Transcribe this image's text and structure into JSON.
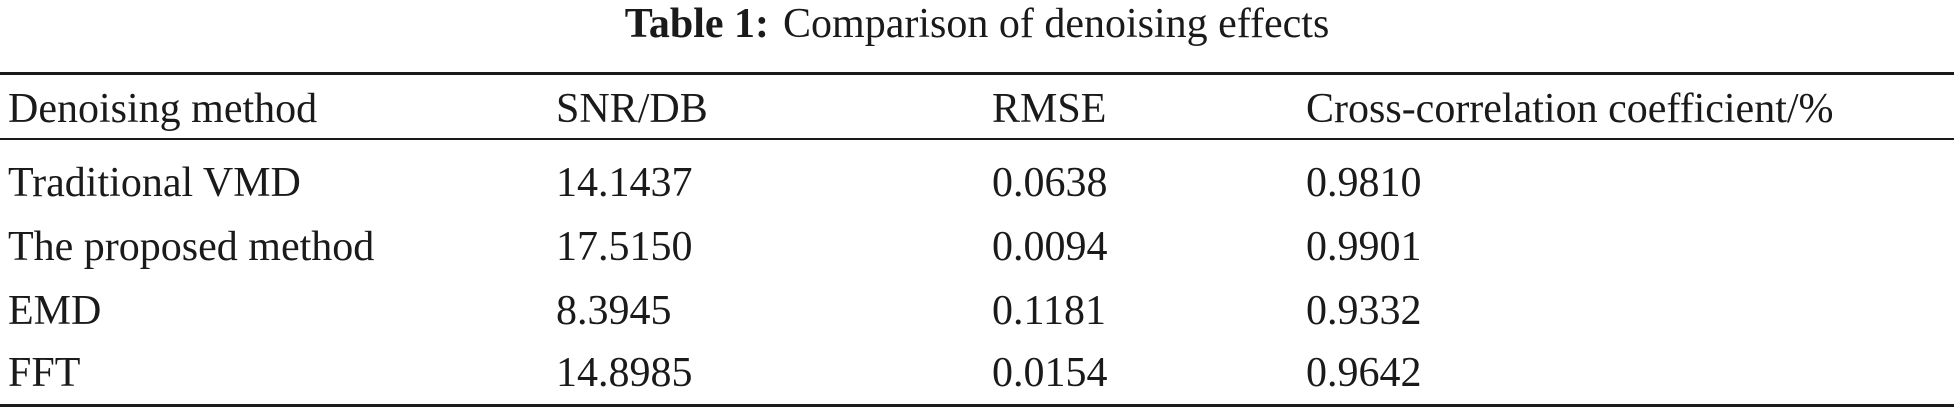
{
  "caption": {
    "label": "Table 1:",
    "text": "Comparison of denoising effects"
  },
  "table": {
    "headers": [
      "Denoising method",
      "SNR/DB",
      "RMSE",
      "Cross-correlation coefficient/%"
    ],
    "rows": [
      [
        "Traditional VMD",
        "14.1437",
        "0.0638",
        "0.9810"
      ],
      [
        "The proposed method",
        "17.5150",
        "0.0094",
        "0.9901"
      ],
      [
        "EMD",
        "8.3945",
        "0.1181",
        "0.9332"
      ],
      [
        "FFT",
        "14.8985",
        "0.0154",
        "0.9642"
      ]
    ]
  }
}
